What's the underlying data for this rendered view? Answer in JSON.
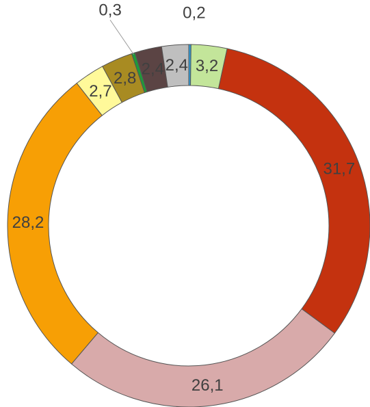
{
  "chart_data": {
    "type": "pie",
    "donut": true,
    "title": "",
    "slices": [
      {
        "label": "0,2",
        "value": 0.2,
        "color": "#2E9BD6"
      },
      {
        "label": "3,2",
        "value": 3.2,
        "color": "#C3E59A"
      },
      {
        "label": "31,7",
        "value": 31.7,
        "color": "#C4320F"
      },
      {
        "label": "26,1",
        "value": 26.1,
        "color": "#D8AAAA"
      },
      {
        "label": "28,2",
        "value": 28.2,
        "color": "#F79F05"
      },
      {
        "label": "2,7",
        "value": 2.7,
        "color": "#FFF99A"
      },
      {
        "label": "2,8",
        "value": 2.8,
        "color": "#A88B22"
      },
      {
        "label": "0,3",
        "value": 0.3,
        "color": "#1F9A3A"
      },
      {
        "label": "2,4",
        "value": 2.4,
        "color": "#5B4444"
      },
      {
        "label": "2,4",
        "value": 2.4,
        "color": "#BFBFBF"
      }
    ]
  }
}
